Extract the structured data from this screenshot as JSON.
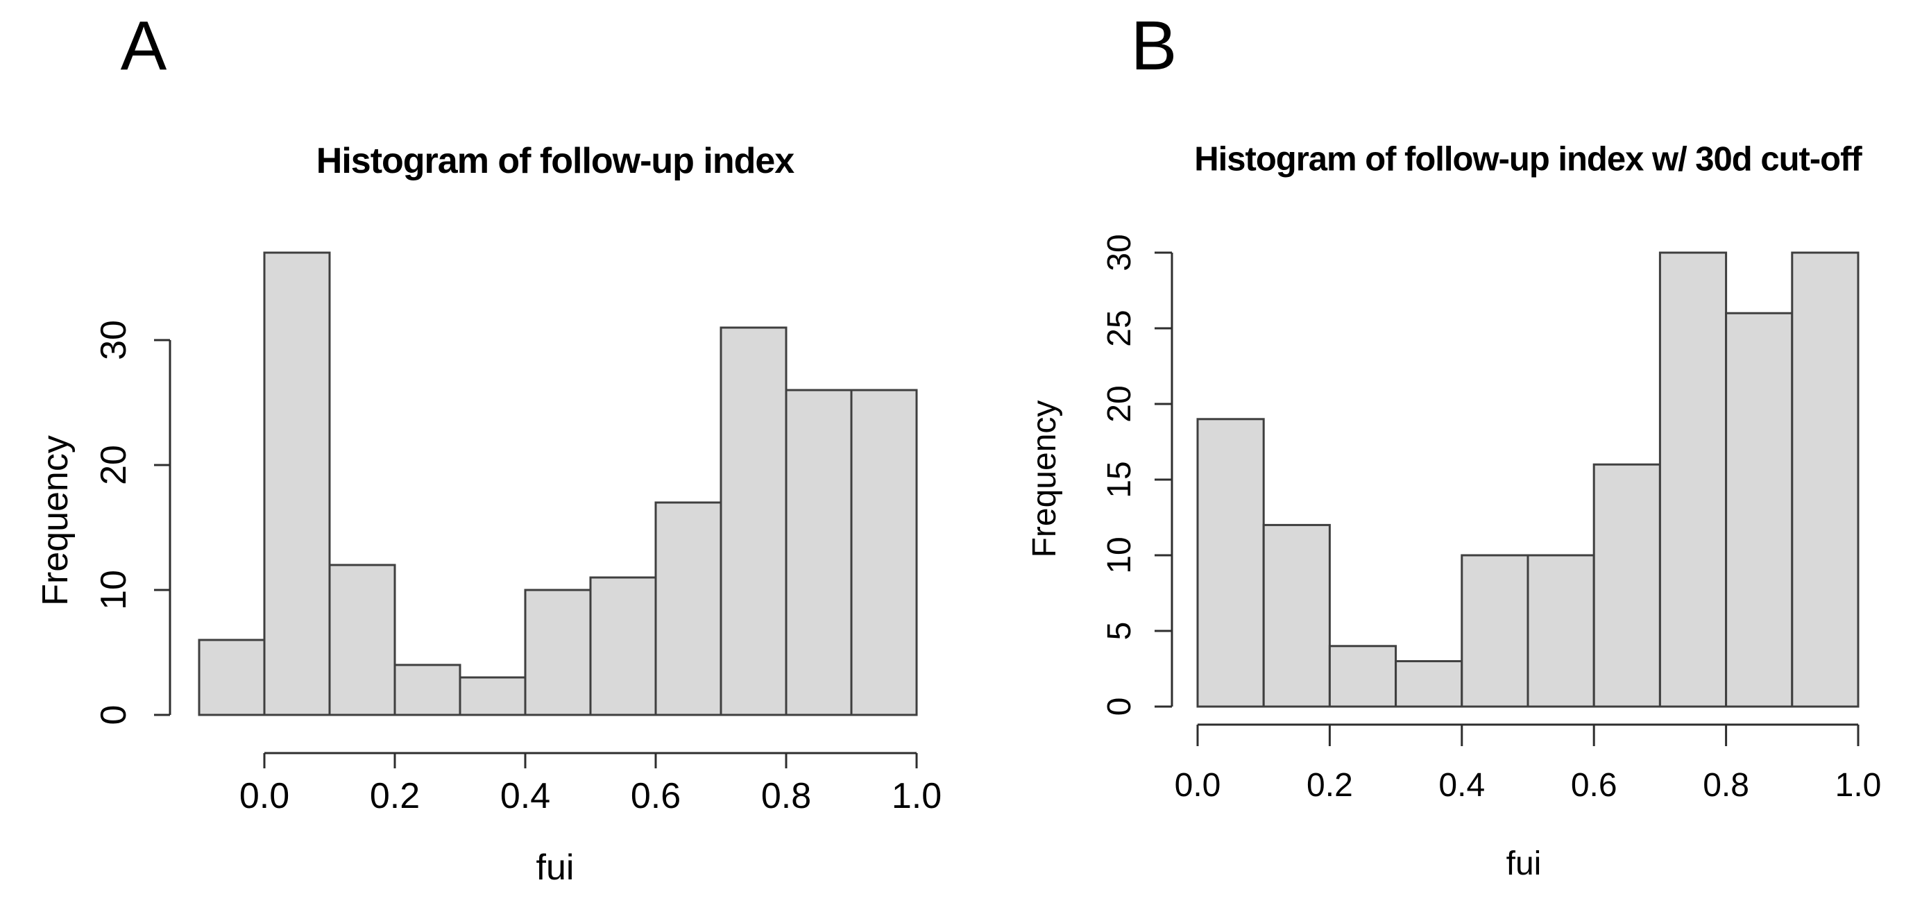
{
  "colors": {
    "background": "#ffffff",
    "bar_fill": "#d9d9d9",
    "bar_stroke": "#3f3f3f",
    "axis": "#2e2e2e",
    "text": "#000000"
  },
  "chart_data": [
    {
      "type": "bar",
      "panel_label": "A",
      "title": "Histogram of follow-up index",
      "xlabel": "fui",
      "ylabel": "Frequency",
      "bin_start": -0.1,
      "bin_width": 0.1,
      "values": [
        6,
        37,
        12,
        4,
        3,
        10,
        11,
        17,
        31,
        26,
        26
      ],
      "xlim": [
        -0.1,
        1.0
      ],
      "ylim": [
        0,
        37
      ],
      "xticks": [
        0.0,
        0.2,
        0.4,
        0.6,
        0.8,
        1.0
      ],
      "xtick_labels": [
        "0.0",
        "0.2",
        "0.4",
        "0.6",
        "0.8",
        "1.0"
      ],
      "yticks": [
        0,
        10,
        20,
        30
      ],
      "ytick_labels": [
        "0",
        "10",
        "20",
        "30"
      ],
      "grid": false,
      "legend": null
    },
    {
      "type": "bar",
      "panel_label": "B",
      "title": "Histogram of follow-up index w/ 30d cut-off",
      "xlabel": "fui",
      "ylabel": "Frequency",
      "bin_start": 0.0,
      "bin_width": 0.1,
      "values": [
        19,
        12,
        4,
        3,
        10,
        10,
        16,
        30,
        26,
        30
      ],
      "xlim": [
        0.0,
        1.0
      ],
      "ylim": [
        0,
        30
      ],
      "xticks": [
        0.0,
        0.2,
        0.4,
        0.6,
        0.8,
        1.0
      ],
      "xtick_labels": [
        "0.0",
        "0.2",
        "0.4",
        "0.6",
        "0.8",
        "1.0"
      ],
      "yticks": [
        0,
        5,
        10,
        15,
        20,
        25,
        30
      ],
      "ytick_labels": [
        "0",
        "5",
        "10",
        "15",
        "20",
        "25",
        "30"
      ],
      "grid": false,
      "legend": null
    }
  ]
}
